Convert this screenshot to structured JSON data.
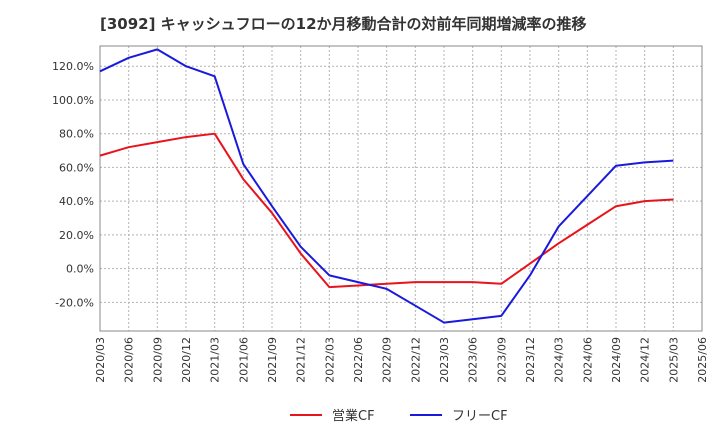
{
  "chart_data": {
    "type": "line",
    "title": "[3092]  キャッシュフローの12か月移動合計の対前年同期増減率の推移",
    "xlabel": "",
    "ylabel": "",
    "x_ticks": [
      "2020/03",
      "2020/06",
      "2020/09",
      "2020/12",
      "2021/03",
      "2021/06",
      "2021/09",
      "2021/12",
      "2022/03",
      "2022/06",
      "2022/09",
      "2022/12",
      "2023/03",
      "2023/06",
      "2023/09",
      "2023/12",
      "2024/03",
      "2024/06",
      "2024/09",
      "2024/12",
      "2025/03",
      "2025/06"
    ],
    "y_ticks": [
      "-20.0%",
      "0.0%",
      "20.0%",
      "40.0%",
      "60.0%",
      "80.0%",
      "100.0%",
      "120.0%"
    ],
    "y_tick_values": [
      -20,
      0,
      20,
      40,
      60,
      80,
      100,
      120
    ],
    "ylim": [
      -37,
      132
    ],
    "grid": true,
    "legend_position": "bottom",
    "series": [
      {
        "name": "営業CF",
        "color": "#e8141c",
        "x": [
          "2020/03",
          "2020/06",
          "2020/09",
          "2020/12",
          "2021/03",
          "2021/06",
          "2021/09",
          "2021/12",
          "2022/03",
          "2022/06",
          "2022/09",
          "2022/12",
          "2023/03",
          "2023/06",
          "2023/09",
          "2023/12",
          "2024/03",
          "2024/06",
          "2024/09",
          "2024/12",
          "2025/03"
        ],
        "values": [
          67,
          72,
          75,
          78,
          80,
          53,
          33,
          9,
          -11,
          -10,
          -9,
          -8,
          -8,
          -8,
          -9,
          3,
          15,
          26,
          37,
          40,
          41
        ]
      },
      {
        "name": "フリーCF",
        "color": "#1a1adc",
        "x": [
          "2020/03",
          "2020/06",
          "2020/09",
          "2020/12",
          "2021/03",
          "2021/06",
          "2021/09",
          "2021/12",
          "2022/03",
          "2022/06",
          "2022/09",
          "2022/12",
          "2023/03",
          "2023/06",
          "2023/09",
          "2023/12",
          "2024/03",
          "2024/06",
          "2024/09",
          "2024/12",
          "2025/03"
        ],
        "values": [
          117,
          125,
          130,
          120,
          114,
          62,
          37,
          13,
          -4,
          -8,
          -12,
          -22,
          -32,
          -30,
          -28,
          -4,
          25,
          43,
          61,
          63,
          64
        ]
      }
    ]
  }
}
